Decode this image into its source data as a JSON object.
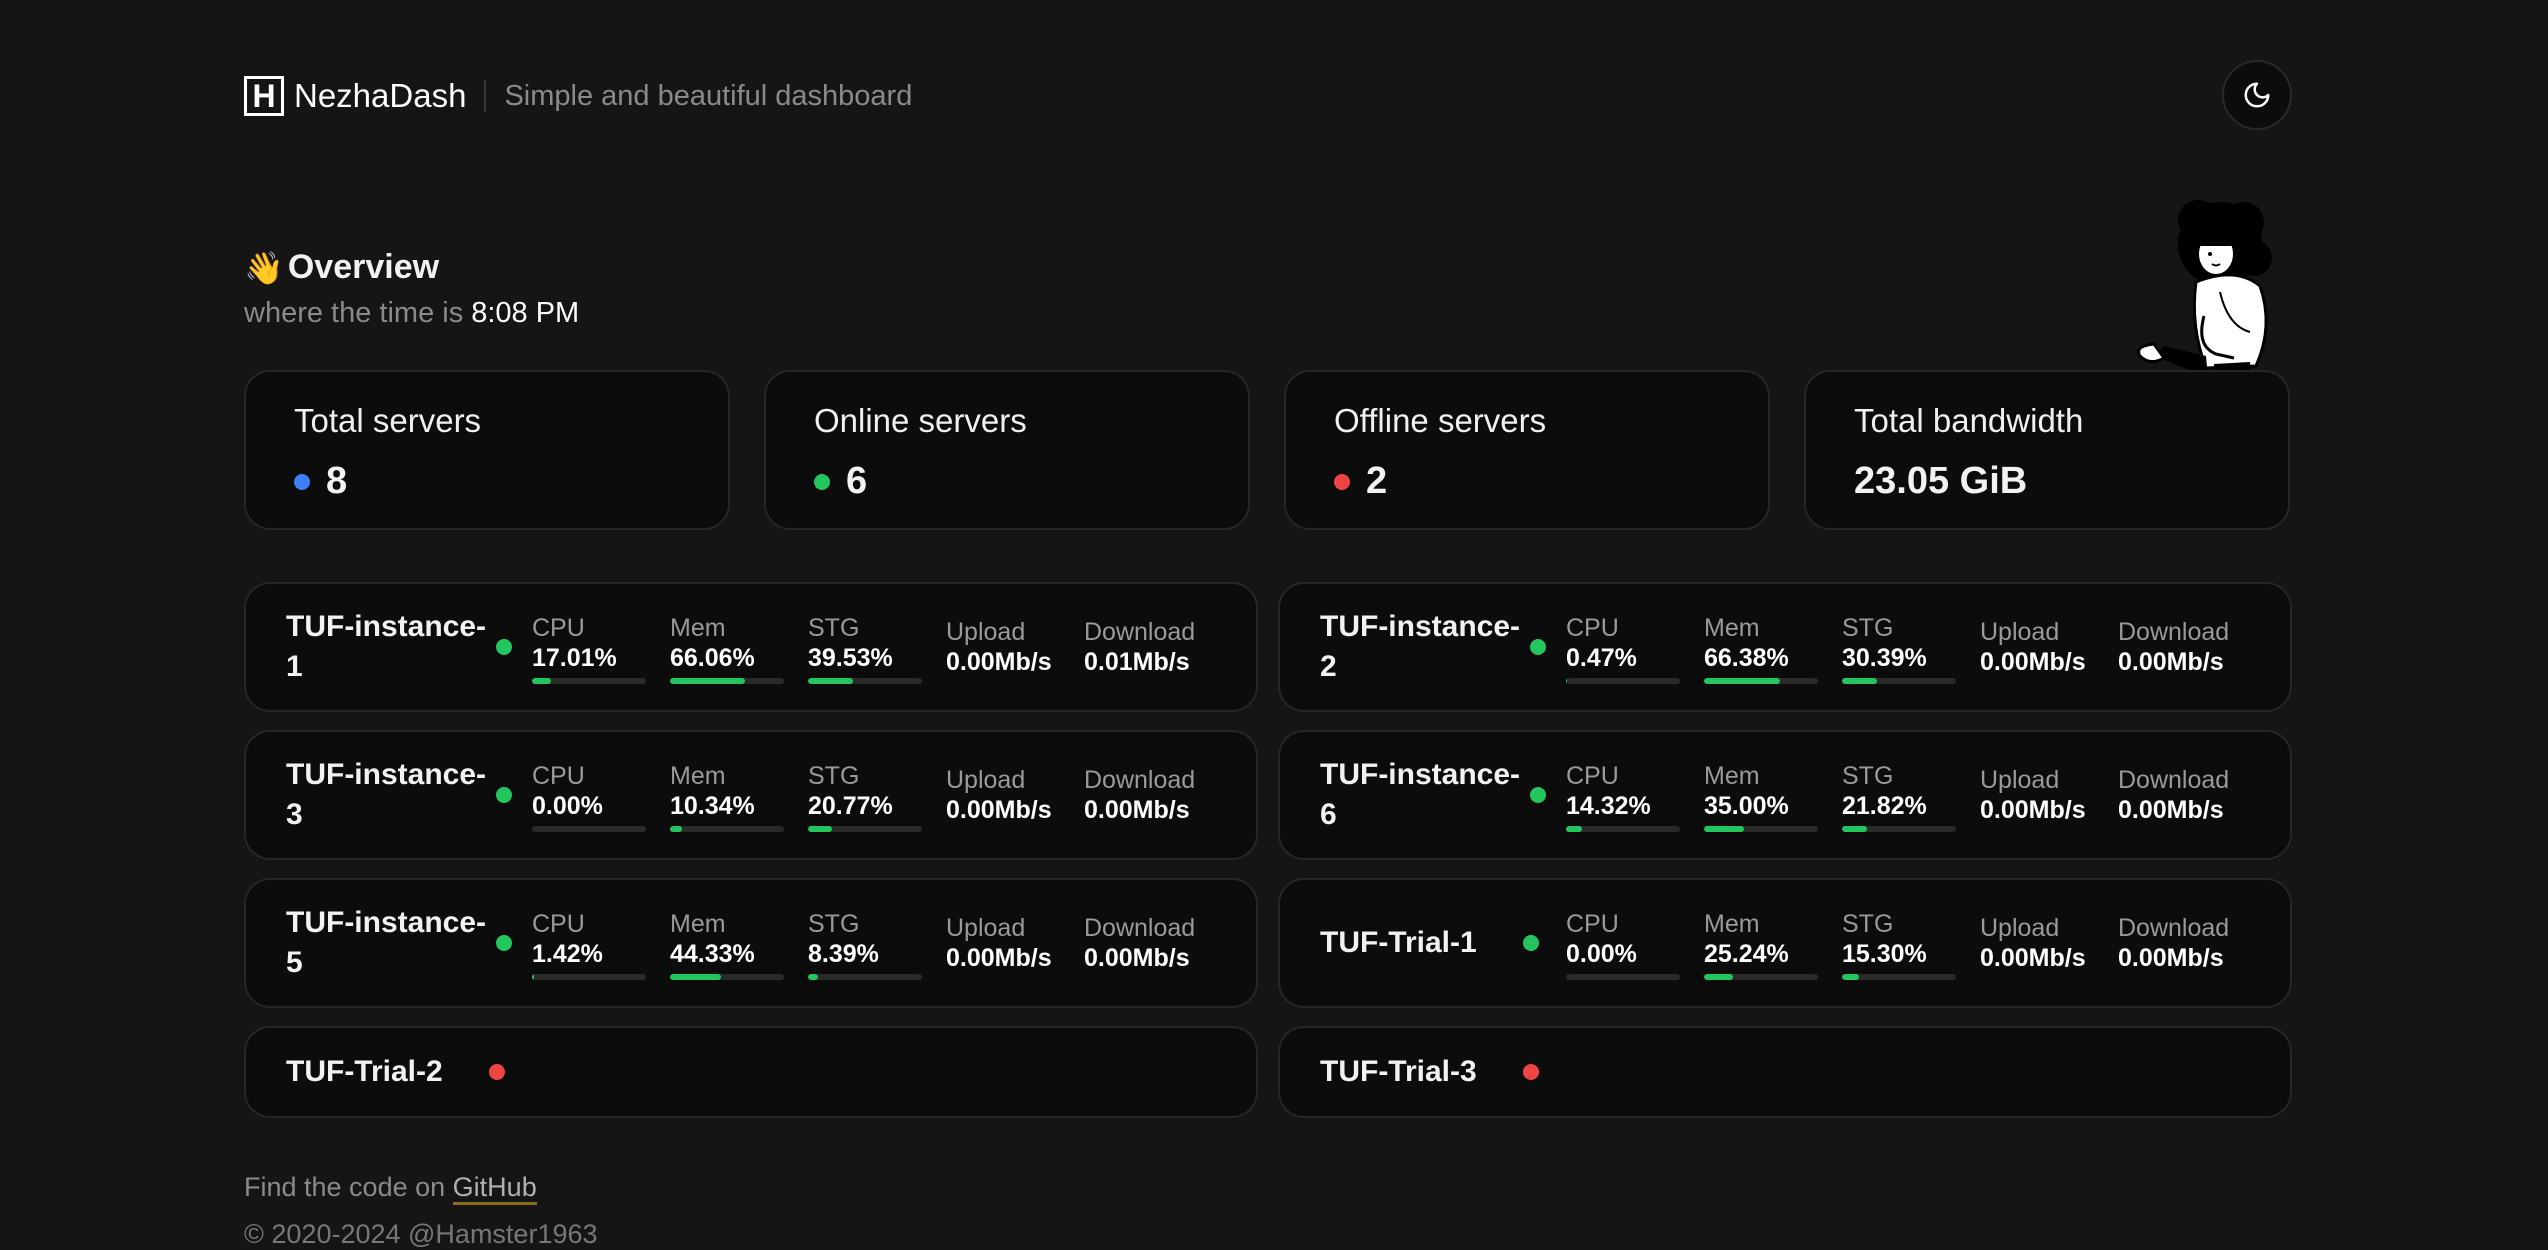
{
  "header": {
    "logo_letter": "H",
    "brand": "NezhaDash",
    "tagline": "Simple and beautiful dashboard",
    "theme_toggle_icon": "moon-icon"
  },
  "overview": {
    "emoji": "👋",
    "title": "Overview",
    "time_prefix": "where the time is",
    "time": "8:08 PM"
  },
  "stats": [
    {
      "label": "Total servers",
      "value": "8",
      "dot_color": "#3b82f6"
    },
    {
      "label": "Online servers",
      "value": "6",
      "dot_color": "#22c55e"
    },
    {
      "label": "Offline servers",
      "value": "2",
      "dot_color": "#ef4444"
    },
    {
      "label": "Total bandwidth",
      "value": "23.05 GiB",
      "dot_color": ""
    }
  ],
  "labels": {
    "cpu": "CPU",
    "mem": "Mem",
    "stg": "STG",
    "upload": "Upload",
    "download": "Download"
  },
  "colors": {
    "online": "#22c55e",
    "offline": "#ef4444",
    "accent_blue": "#3b82f6",
    "bar": "#22c55e"
  },
  "servers": [
    {
      "name": "TUF-instance-1",
      "online": true,
      "cpu": "17.01%",
      "mem": "66.06%",
      "stg": "39.53%",
      "cpu_pct": 17.01,
      "mem_pct": 66.06,
      "stg_pct": 39.53,
      "upload": "0.00Mb/s",
      "download": "0.01Mb/s"
    },
    {
      "name": "TUF-instance-2",
      "online": true,
      "cpu": "0.47%",
      "mem": "66.38%",
      "stg": "30.39%",
      "cpu_pct": 0.47,
      "mem_pct": 66.38,
      "stg_pct": 30.39,
      "upload": "0.00Mb/s",
      "download": "0.00Mb/s"
    },
    {
      "name": "TUF-instance-3",
      "online": true,
      "cpu": "0.00%",
      "mem": "10.34%",
      "stg": "20.77%",
      "cpu_pct": 0.0,
      "mem_pct": 10.34,
      "stg_pct": 20.77,
      "upload": "0.00Mb/s",
      "download": "0.00Mb/s"
    },
    {
      "name": "TUF-instance-6",
      "online": true,
      "cpu": "14.32%",
      "mem": "35.00%",
      "stg": "21.82%",
      "cpu_pct": 14.32,
      "mem_pct": 35.0,
      "stg_pct": 21.82,
      "upload": "0.00Mb/s",
      "download": "0.00Mb/s"
    },
    {
      "name": "TUF-instance-5",
      "online": true,
      "cpu": "1.42%",
      "mem": "44.33%",
      "stg": "8.39%",
      "cpu_pct": 1.42,
      "mem_pct": 44.33,
      "stg_pct": 8.39,
      "upload": "0.00Mb/s",
      "download": "0.00Mb/s"
    },
    {
      "name": "TUF-Trial-1",
      "online": true,
      "cpu": "0.00%",
      "mem": "25.24%",
      "stg": "15.30%",
      "cpu_pct": 0.0,
      "mem_pct": 25.24,
      "stg_pct": 15.3,
      "upload": "0.00Mb/s",
      "download": "0.00Mb/s"
    },
    {
      "name": "TUF-Trial-2",
      "online": false
    },
    {
      "name": "TUF-Trial-3",
      "online": false
    }
  ],
  "footer": {
    "code_prefix": "Find the code on",
    "github_link": "GitHub",
    "copyright": "© 2020-2024  @Hamster1963"
  }
}
